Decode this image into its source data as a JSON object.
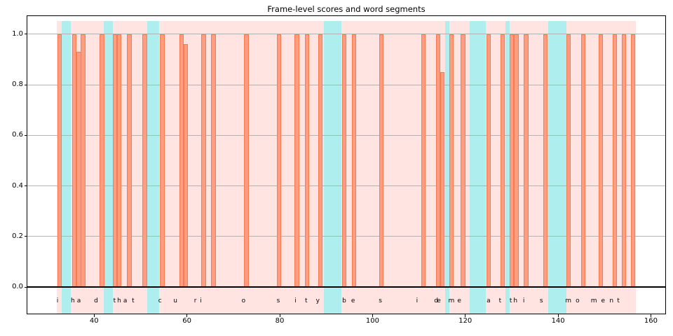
{
  "chart_data": {
    "type": "bar",
    "title": "Frame-level scores and word segments",
    "transcript": "i had that curiosity beside me at this moment",
    "xlabel": "",
    "ylabel": "",
    "xlim": [
      25.6,
      163.1
    ],
    "ylim": [
      -0.105,
      1.072
    ],
    "xticks": [
      "40",
      "60",
      "80",
      "100",
      "120",
      "140",
      "160"
    ],
    "yticks": [
      "0.0",
      "0.2",
      "0.4",
      "0.6",
      "0.8",
      "1.0"
    ],
    "grid": "horizontal",
    "legend": "none",
    "bar_width": 0.95,
    "span_top": 1.052,
    "baseline_y": 0.0,
    "bars": [
      {
        "x": 32.5,
        "score": 1.0
      },
      {
        "x": 35.7,
        "score": 1.0
      },
      {
        "x": 36.7,
        "score": 0.93
      },
      {
        "x": 37.6,
        "score": 1.0
      },
      {
        "x": 41.7,
        "score": 1.0
      },
      {
        "x": 44.5,
        "score": 1.0
      },
      {
        "x": 45.4,
        "score": 1.0
      },
      {
        "x": 47.6,
        "score": 1.0
      },
      {
        "x": 50.9,
        "score": 1.0
      },
      {
        "x": 54.7,
        "score": 1.0
      },
      {
        "x": 58.8,
        "score": 1.0
      },
      {
        "x": 59.7,
        "score": 0.96
      },
      {
        "x": 63.6,
        "score": 1.0
      },
      {
        "x": 65.7,
        "score": 1.0
      },
      {
        "x": 72.8,
        "score": 1.0
      },
      {
        "x": 79.8,
        "score": 1.0
      },
      {
        "x": 83.7,
        "score": 1.0
      },
      {
        "x": 85.9,
        "score": 1.0
      },
      {
        "x": 88.8,
        "score": 1.0
      },
      {
        "x": 93.9,
        "score": 1.0
      },
      {
        "x": 96.0,
        "score": 1.0
      },
      {
        "x": 101.9,
        "score": 1.0
      },
      {
        "x": 111.0,
        "score": 1.0
      },
      {
        "x": 114.1,
        "score": 1.0
      },
      {
        "x": 115.05,
        "score": 0.85
      },
      {
        "x": 117.0,
        "score": 1.0
      },
      {
        "x": 119.5,
        "score": 1.0
      },
      {
        "x": 125.0,
        "score": 1.0
      },
      {
        "x": 128.0,
        "score": 1.0
      },
      {
        "x": 130.0,
        "score": 1.0
      },
      {
        "x": 131.0,
        "score": 1.0
      },
      {
        "x": 133.1,
        "score": 1.0
      },
      {
        "x": 137.3,
        "score": 1.0
      },
      {
        "x": 142.2,
        "score": 1.0
      },
      {
        "x": 145.4,
        "score": 1.0
      },
      {
        "x": 149.2,
        "score": 1.0
      },
      {
        "x": 152.2,
        "score": 1.0
      },
      {
        "x": 154.2,
        "score": 1.0
      },
      {
        "x": 156.1,
        "score": 1.0
      }
    ],
    "word_region": {
      "start": 31.9,
      "end": 156.8
    },
    "space_regions": [
      [
        33.0,
        34.9
      ],
      [
        42.1,
        44.0
      ],
      [
        51.4,
        54.0
      ],
      [
        89.5,
        93.3
      ],
      [
        115.6,
        116.5
      ],
      [
        120.9,
        124.4
      ],
      [
        128.6,
        129.5
      ],
      [
        137.9,
        141.8
      ]
    ],
    "letters": [
      {
        "ch": "i",
        "x": 32.1
      },
      {
        "ch": "h",
        "x": 35.4
      },
      {
        "ch": "a",
        "x": 36.7
      },
      {
        "ch": "d",
        "x": 40.4
      },
      {
        "ch": "t",
        "x": 44.4
      },
      {
        "ch": "h",
        "x": 45.4
      },
      {
        "ch": "a",
        "x": 46.7
      },
      {
        "ch": "t",
        "x": 48.4
      },
      {
        "ch": "c",
        "x": 54.2
      },
      {
        "ch": "u",
        "x": 57.5
      },
      {
        "ch": "r",
        "x": 61.8
      },
      {
        "ch": "i",
        "x": 63.0
      },
      {
        "ch": "o",
        "x": 72.2
      },
      {
        "ch": "s",
        "x": 79.7
      },
      {
        "ch": "i",
        "x": 83.4
      },
      {
        "ch": "t",
        "x": 85.7
      },
      {
        "ch": "y",
        "x": 88.2
      },
      {
        "ch": "b",
        "x": 93.9
      },
      {
        "ch": "e",
        "x": 95.8
      },
      {
        "ch": "s",
        "x": 101.7
      },
      {
        "ch": "i",
        "x": 109.6
      },
      {
        "ch": "d",
        "x": 113.7
      },
      {
        "ch": "e",
        "x": 114.3
      },
      {
        "ch": "m",
        "x": 117.0
      },
      {
        "ch": "e",
        "x": 118.7
      },
      {
        "ch": "a",
        "x": 125.0
      },
      {
        "ch": "t",
        "x": 127.5
      },
      {
        "ch": "t",
        "x": 129.8
      },
      {
        "ch": "h",
        "x": 130.8
      },
      {
        "ch": "i",
        "x": 132.6
      },
      {
        "ch": "s",
        "x": 136.4
      },
      {
        "ch": "m",
        "x": 142.2
      },
      {
        "ch": "o",
        "x": 144.2
      },
      {
        "ch": "m",
        "x": 147.7
      },
      {
        "ch": "e",
        "x": 149.7
      },
      {
        "ch": "n",
        "x": 151.5
      },
      {
        "ch": "t",
        "x": 153.0
      }
    ],
    "colors": {
      "bar_fill": "#ff9d80",
      "bar_edge": "#fb7b50",
      "word_span": "#ffe4e1",
      "space_span": "#aeeeee",
      "gridline": "#b2b2b2",
      "baseline": "#000000",
      "spine": "#000000",
      "text": "#000000",
      "background": "#ffffff"
    }
  }
}
